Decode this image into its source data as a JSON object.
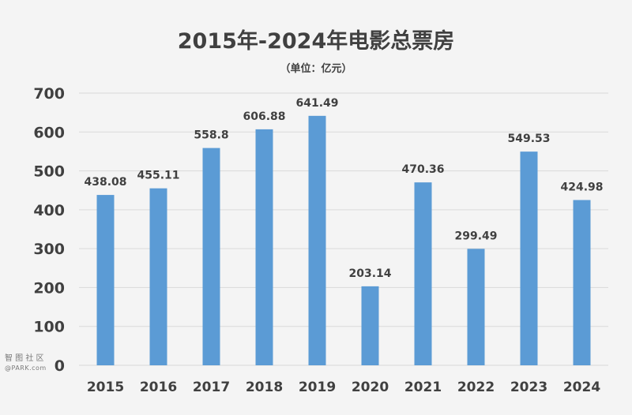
{
  "chart_data": {
    "type": "bar",
    "title": "2015年-2024年电影总票房",
    "subtitle": "（单位：亿元）",
    "categories": [
      "2015",
      "2016",
      "2017",
      "2018",
      "2019",
      "2020",
      "2021",
      "2022",
      "2023",
      "2024"
    ],
    "values": [
      438.08,
      455.11,
      558.8,
      606.88,
      641.49,
      203.14,
      470.36,
      299.49,
      549.53,
      424.98
    ],
    "data_labels": [
      "438.08",
      "455.11",
      "558.8",
      "606.88",
      "641.49",
      "203.14",
      "470.36",
      "299.49",
      "549.53",
      "424.98"
    ],
    "ylim": [
      0,
      700
    ],
    "yticks": [
      0,
      100,
      200,
      300,
      400,
      500,
      600,
      700
    ],
    "grid": true,
    "bar_color": "#5b9bd5",
    "grid_color": "#d9d9d9"
  },
  "watermark": {
    "text": "智 图 社 区",
    "sub": "@PARK.com"
  }
}
